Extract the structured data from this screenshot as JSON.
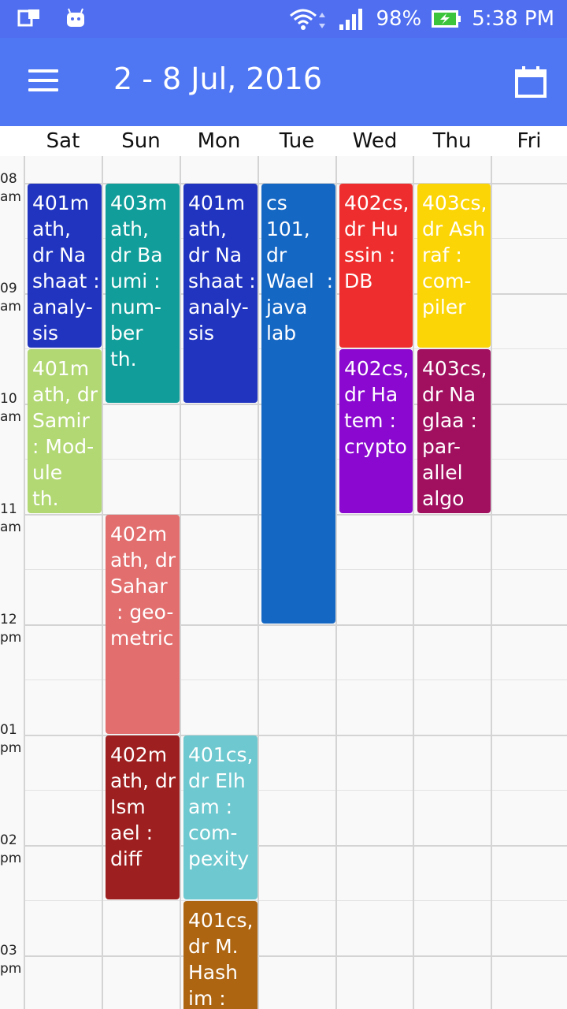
{
  "status_bar": {
    "battery": "98%",
    "time": "5:38 PM"
  },
  "header": {
    "title": "2 - 8 Jul, 2016"
  },
  "days": [
    "Sat",
    "Sun",
    "Mon",
    "Tue",
    "Wed",
    "Thu",
    "Fri"
  ],
  "times": [
    {
      "h": "08",
      "p": "am"
    },
    {
      "h": "09",
      "p": "am"
    },
    {
      "h": "10",
      "p": "am"
    },
    {
      "h": "11",
      "p": "am"
    },
    {
      "h": "12",
      "p": "pm"
    },
    {
      "h": "01",
      "p": "pm"
    },
    {
      "h": "02",
      "p": "pm"
    },
    {
      "h": "03",
      "p": "pm"
    }
  ],
  "events": [
    {
      "lines": [
        "401m",
        "ath,",
        "dr Na",
        "shaat :",
        "analy-",
        "sis"
      ]
    },
    {
      "lines": [
        "401m",
        "ath, dr",
        "Samir",
        ": Mod-",
        "ule",
        "th."
      ]
    },
    {
      "lines": [
        "403m",
        "ath,",
        "dr Ba",
        "umi :",
        "num-",
        "ber",
        "th."
      ]
    },
    {
      "lines": [
        "402m",
        "ath, dr",
        "Sahar",
        " : geo-",
        "metric"
      ]
    },
    {
      "lines": [
        "402m",
        "ath, dr",
        "Ism",
        "ael :",
        "diff"
      ]
    },
    {
      "lines": [
        "401m",
        "ath,",
        "dr Na",
        "shaat :",
        "analy-",
        "sis"
      ]
    },
    {
      "lines": [
        "401cs,",
        "dr Elh",
        "am :",
        "com-",
        "pexity"
      ]
    },
    {
      "lines": [
        "401cs,",
        "dr M.",
        "Hash",
        "im :"
      ]
    },
    {
      "lines": [
        "cs",
        "101,",
        "dr",
        "Wael  :",
        "java",
        "lab"
      ]
    },
    {
      "lines": [
        "402cs,",
        "dr Hu",
        "ssin :",
        "DB"
      ]
    },
    {
      "lines": [
        "402cs,",
        "dr Ha",
        "tem :",
        "crypto"
      ]
    },
    {
      "lines": [
        "403cs,",
        "dr Ash",
        "raf :",
        "com-",
        "piler"
      ]
    },
    {
      "lines": [
        "403cs,",
        "dr Na",
        "glaa :",
        "par-",
        "allel",
        "algo"
      ]
    }
  ],
  "colors": {
    "status_bar": "#4f6ef0",
    "app_bar": "#4f76f3",
    "event_colors": [
      "#2034c0",
      "#b2d873",
      "#119e9a",
      "#e26e6e",
      "#9e1f1f",
      "#2034c0",
      "#6ec8cf",
      "#ad6511",
      "#1567c4",
      "#ee2e2e",
      "#8a08cf",
      "#fcd506",
      "#a0105f"
    ]
  }
}
